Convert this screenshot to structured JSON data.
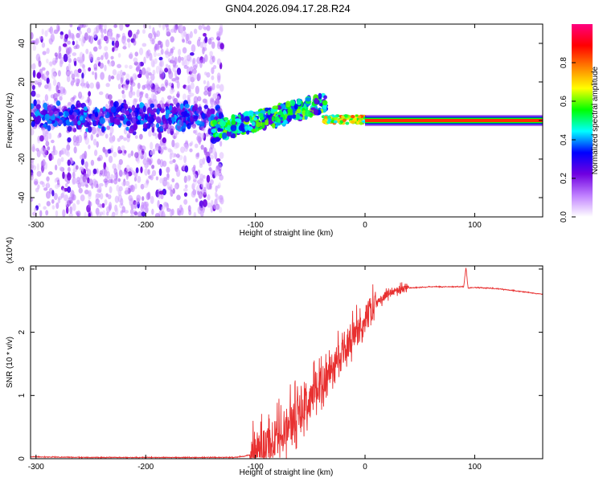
{
  "title": "GN04.2026.094.17.28.R24",
  "chart_data": [
    {
      "type": "heatmap",
      "xlabel": "Height of straight line (km)",
      "ylabel": "Frequency (Hz)",
      "xlim": [
        -305,
        162
      ],
      "ylim": [
        -50,
        50
      ],
      "xticks": [
        -300,
        -200,
        -100,
        0,
        100
      ],
      "xtick_labels": [
        "-300",
        "-200",
        "-100",
        "0",
        "100"
      ],
      "yticks": [
        -40,
        -20,
        0,
        20,
        40
      ],
      "ytick_labels": [
        "-40",
        "-20",
        "0",
        "20",
        "40"
      ],
      "colorbar": {
        "label": "Normalized spectral amplitude",
        "range": [
          0,
          1
        ],
        "ticks": [
          0,
          0.2,
          0.4,
          0.6,
          0.8
        ],
        "tick_labels": [
          "0.0",
          "0.2",
          "0.4",
          "0.6",
          "0.8"
        ],
        "colors": [
          "#ffffff",
          "#c080ff",
          "#7000e0",
          "#0000ff",
          "#00ffff",
          "#00ff00",
          "#ffff00",
          "#ff8000",
          "#ff0000",
          "#ff0080"
        ]
      },
      "regions": [
        {
          "x": [
            -305,
            -130
          ],
          "f_center": 0,
          "f_spread": 50,
          "amplitude": 0.15,
          "note": "diffuse noise"
        },
        {
          "x": [
            -305,
            -130
          ],
          "f_center": 2,
          "f_spread": 8,
          "amplitude": 0.3
        },
        {
          "x": [
            -140,
            -35
          ],
          "f_center_start": -6,
          "f_center_end": 9,
          "amplitude": 0.45
        },
        {
          "x": [
            -38,
            0
          ],
          "f_center": 0.5,
          "amplitude": 0.7
        },
        {
          "x": [
            0,
            162
          ],
          "f_center": 0,
          "amplitude": 0.85
        }
      ],
      "grid": false
    },
    {
      "type": "line",
      "xlabel": "Height of straight line (km)",
      "ylabel": "SNR (10 * v/v)",
      "scale_label": "(x10^4)",
      "xlim": [
        -305,
        162
      ],
      "ylim": [
        0,
        3.05
      ],
      "xticks": [
        -300,
        -200,
        -100,
        0,
        100
      ],
      "xtick_labels": [
        "-300",
        "-200",
        "-100",
        "0",
        "100"
      ],
      "yticks": [
        0,
        1,
        2,
        3
      ],
      "ytick_labels": [
        "0",
        "1",
        "2",
        "3"
      ],
      "color": "#e83030",
      "series": [
        {
          "x": [
            -305,
            -250,
            -200,
            -150,
            -120,
            -110,
            -100,
            -90,
            -80,
            -70,
            -60,
            -50,
            -40,
            -30,
            -20,
            -10,
            0,
            10,
            20,
            30,
            40,
            50,
            60,
            70,
            80,
            90,
            92,
            94,
            100,
            120,
            140,
            162
          ],
          "y": [
            0.03,
            0.02,
            0.02,
            0.02,
            0.02,
            0.04,
            0.08,
            0.2,
            0.35,
            0.55,
            0.75,
            0.95,
            1.2,
            1.45,
            1.7,
            1.95,
            2.2,
            2.45,
            2.6,
            2.67,
            2.7,
            2.71,
            2.72,
            2.72,
            2.72,
            2.72,
            3.03,
            2.7,
            2.71,
            2.69,
            2.65,
            2.6
          ]
        }
      ],
      "spike_amplitude": [
        {
          "x": [
            -105,
            -40
          ],
          "amp": 0.6
        },
        {
          "x": [
            -40,
            10
          ],
          "amp": 0.45
        },
        {
          "x": [
            10,
            40
          ],
          "amp": 0.12
        }
      ],
      "grid": false
    }
  ]
}
